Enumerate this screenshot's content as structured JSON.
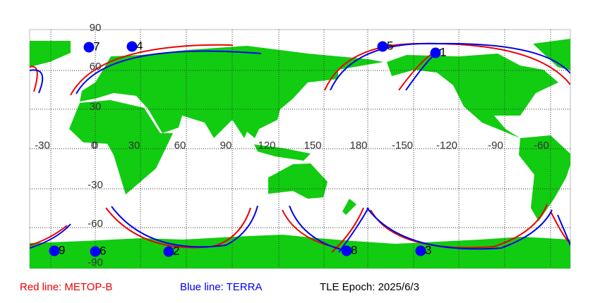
{
  "map": {
    "lon_labels": [
      "-30",
      "0",
      "30",
      "60",
      "90",
      "120",
      "150",
      "180",
      "-150",
      "-120",
      "-90",
      "-60"
    ],
    "lat_labels": [
      "90",
      "60",
      "30",
      "0",
      "-30",
      "-60",
      "-90"
    ],
    "points": [
      {
        "label": "1"
      },
      {
        "label": "2"
      },
      {
        "label": "3"
      },
      {
        "label": "4"
      },
      {
        "label": "5"
      },
      {
        "label": "6"
      },
      {
        "label": "7"
      },
      {
        "label": "8"
      },
      {
        "label": "9"
      }
    ]
  },
  "legend": {
    "red": "Red line: METOP-B",
    "blue": "Blue line: TERRA",
    "epoch": "TLE Epoch: 2025/6/3"
  }
}
